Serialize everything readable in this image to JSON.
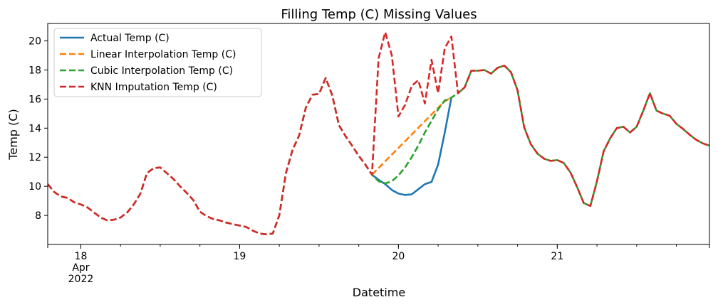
{
  "chart_data": {
    "type": "line",
    "title": "Filling Temp (C) Missing Values",
    "xlabel": "Datetime",
    "ylabel": "Temp (C)",
    "xlim": [
      "2022-04-17T19:00",
      "2022-04-21T23:00"
    ],
    "ylim": [
      6.0,
      21.2
    ],
    "yticks": [
      8,
      10,
      12,
      14,
      16,
      18,
      20
    ],
    "xticks": [
      {
        "x": "2022-04-18T00:00",
        "label": "18"
      },
      {
        "x": "2022-04-19T00:00",
        "label": "19"
      },
      {
        "x": "2022-04-20T00:00",
        "label": "20"
      },
      {
        "x": "2022-04-21T00:00",
        "label": "21"
      }
    ],
    "xtick_sublabels": [
      "Apr",
      "2022"
    ],
    "grid": false,
    "legend": "upper-left",
    "series": [
      {
        "name": "Actual Temp (C)",
        "color": "#1f77b4",
        "dash": "solid",
        "points": [
          [
            "2022-04-19T20:00",
            10.8
          ],
          [
            "2022-04-19T21:00",
            10.45
          ],
          [
            "2022-04-19T22:00",
            10.15
          ],
          [
            "2022-04-19T23:00",
            9.75
          ],
          [
            "2022-04-20T00:00",
            9.5
          ],
          [
            "2022-04-20T01:00",
            9.4
          ],
          [
            "2022-04-20T02:00",
            9.45
          ],
          [
            "2022-04-20T03:00",
            9.8
          ],
          [
            "2022-04-20T04:00",
            10.15
          ],
          [
            "2022-04-20T05:00",
            10.3
          ],
          [
            "2022-04-20T06:00",
            11.5
          ],
          [
            "2022-04-20T07:00",
            13.7
          ],
          [
            "2022-04-20T08:00",
            16.1
          ]
        ]
      },
      {
        "name": "Linear Interpolation Temp (C)",
        "color": "#ff7f0e",
        "dash": "dashed",
        "points": [
          [
            "2022-04-19T20:00",
            10.8
          ],
          [
            "2022-04-19T21:00",
            11.26
          ],
          [
            "2022-04-19T22:00",
            11.72
          ],
          [
            "2022-04-19T23:00",
            12.18
          ],
          [
            "2022-04-20T00:00",
            12.64
          ],
          [
            "2022-04-20T01:00",
            13.1
          ],
          [
            "2022-04-20T02:00",
            13.56
          ],
          [
            "2022-04-20T03:00",
            14.02
          ],
          [
            "2022-04-20T04:00",
            14.48
          ],
          [
            "2022-04-20T05:00",
            14.94
          ],
          [
            "2022-04-20T06:00",
            15.4
          ],
          [
            "2022-04-20T07:00",
            15.85
          ],
          [
            "2022-04-20T08:00",
            16.1
          ]
        ]
      },
      {
        "name": "Cubic Interpolation Temp (C)",
        "color": "#2ca02c",
        "dash": "dashed",
        "points": [
          [
            "2022-04-17T19:00",
            10.15
          ],
          [
            "2022-04-17T20:00",
            9.6
          ],
          [
            "2022-04-17T21:00",
            9.3
          ],
          [
            "2022-04-17T22:00",
            9.2
          ],
          [
            "2022-04-17T23:00",
            8.9
          ],
          [
            "2022-04-18T00:00",
            8.75
          ],
          [
            "2022-04-18T01:00",
            8.55
          ],
          [
            "2022-04-18T02:00",
            8.2
          ],
          [
            "2022-04-18T03:00",
            7.85
          ],
          [
            "2022-04-18T04:00",
            7.65
          ],
          [
            "2022-04-18T05:00",
            7.7
          ],
          [
            "2022-04-18T06:00",
            7.85
          ],
          [
            "2022-04-18T07:00",
            8.2
          ],
          [
            "2022-04-18T08:00",
            8.75
          ],
          [
            "2022-04-18T09:00",
            9.5
          ],
          [
            "2022-04-18T10:00",
            10.9
          ],
          [
            "2022-04-18T11:00",
            11.25
          ],
          [
            "2022-04-18T12:00",
            11.3
          ],
          [
            "2022-04-18T13:00",
            10.9
          ],
          [
            "2022-04-18T14:00",
            10.5
          ],
          [
            "2022-04-18T15:00",
            10.0
          ],
          [
            "2022-04-18T16:00",
            9.55
          ],
          [
            "2022-04-18T17:00",
            9.05
          ],
          [
            "2022-04-18T18:00",
            8.25
          ],
          [
            "2022-04-18T19:00",
            7.95
          ],
          [
            "2022-04-18T20:00",
            7.75
          ],
          [
            "2022-04-18T21:00",
            7.65
          ],
          [
            "2022-04-18T22:00",
            7.5
          ],
          [
            "2022-04-18T23:00",
            7.4
          ],
          [
            "2022-04-19T00:00",
            7.3
          ],
          [
            "2022-04-19T01:00",
            7.2
          ],
          [
            "2022-04-19T02:00",
            6.95
          ],
          [
            "2022-04-19T03:00",
            6.75
          ],
          [
            "2022-04-19T04:00",
            6.7
          ],
          [
            "2022-04-19T05:00",
            6.75
          ],
          [
            "2022-04-19T06:00",
            8.0
          ],
          [
            "2022-04-19T07:00",
            10.9
          ],
          [
            "2022-04-19T08:00",
            12.5
          ],
          [
            "2022-04-19T09:00",
            13.5
          ],
          [
            "2022-04-19T10:00",
            15.4
          ],
          [
            "2022-04-19T11:00",
            16.3
          ],
          [
            "2022-04-19T12:00",
            16.35
          ],
          [
            "2022-04-19T13:00",
            17.45
          ],
          [
            "2022-04-19T14:00",
            16.25
          ],
          [
            "2022-04-19T15:00",
            14.2
          ],
          [
            "2022-04-19T16:00",
            13.45
          ],
          [
            "2022-04-19T17:00",
            12.8
          ],
          [
            "2022-04-19T18:00",
            12.1
          ],
          [
            "2022-04-19T19:00",
            11.5
          ],
          [
            "2022-04-19T20:00",
            10.8
          ],
          [
            "2022-04-19T21:00",
            10.35
          ],
          [
            "2022-04-19T22:00",
            10.2
          ],
          [
            "2022-04-19T23:00",
            10.35
          ],
          [
            "2022-04-20T00:00",
            10.75
          ],
          [
            "2022-04-20T01:00",
            11.3
          ],
          [
            "2022-04-20T02:00",
            12.0
          ],
          [
            "2022-04-20T03:00",
            12.8
          ],
          [
            "2022-04-20T04:00",
            13.7
          ],
          [
            "2022-04-20T05:00",
            14.5
          ],
          [
            "2022-04-20T06:00",
            15.3
          ],
          [
            "2022-04-20T07:00",
            15.9
          ],
          [
            "2022-04-20T08:00",
            16.1
          ],
          [
            "2022-04-20T09:00",
            16.4
          ],
          [
            "2022-04-20T10:00",
            16.8
          ],
          [
            "2022-04-20T11:00",
            17.95
          ],
          [
            "2022-04-20T12:00",
            17.95
          ],
          [
            "2022-04-20T13:00",
            18.0
          ],
          [
            "2022-04-20T14:00",
            17.75
          ],
          [
            "2022-04-20T15:00",
            18.15
          ],
          [
            "2022-04-20T16:00",
            18.3
          ],
          [
            "2022-04-20T17:00",
            17.85
          ],
          [
            "2022-04-20T18:00",
            16.6
          ],
          [
            "2022-04-20T19:00",
            14.05
          ],
          [
            "2022-04-20T20:00",
            12.9
          ],
          [
            "2022-04-20T21:00",
            12.25
          ],
          [
            "2022-04-20T22:00",
            11.9
          ],
          [
            "2022-04-20T23:00",
            11.75
          ],
          [
            "2022-04-21T00:00",
            11.8
          ],
          [
            "2022-04-21T01:00",
            11.6
          ],
          [
            "2022-04-21T02:00",
            10.95
          ],
          [
            "2022-04-21T03:00",
            9.95
          ],
          [
            "2022-04-21T04:00",
            8.85
          ],
          [
            "2022-04-21T05:00",
            8.65
          ],
          [
            "2022-04-21T06:00",
            10.35
          ],
          [
            "2022-04-21T07:00",
            12.4
          ],
          [
            "2022-04-21T08:00",
            13.3
          ],
          [
            "2022-04-21T09:00",
            14.0
          ],
          [
            "2022-04-21T10:00",
            14.1
          ],
          [
            "2022-04-21T11:00",
            13.7
          ],
          [
            "2022-04-21T12:00",
            14.1
          ],
          [
            "2022-04-21T13:00",
            15.2
          ],
          [
            "2022-04-21T14:00",
            16.4
          ],
          [
            "2022-04-21T15:00",
            15.2
          ],
          [
            "2022-04-21T16:00",
            15.0
          ],
          [
            "2022-04-21T17:00",
            14.85
          ],
          [
            "2022-04-21T18:00",
            14.3
          ],
          [
            "2022-04-21T19:00",
            13.95
          ],
          [
            "2022-04-21T20:00",
            13.55
          ],
          [
            "2022-04-21T21:00",
            13.2
          ],
          [
            "2022-04-21T22:00",
            12.95
          ],
          [
            "2022-04-21T23:00",
            12.8
          ]
        ]
      },
      {
        "name": "KNN Imputation Temp (C)",
        "color": "#d62728",
        "dash": "dashed",
        "points": [
          [
            "2022-04-17T19:00",
            10.15
          ],
          [
            "2022-04-17T20:00",
            9.6
          ],
          [
            "2022-04-17T21:00",
            9.3
          ],
          [
            "2022-04-17T22:00",
            9.2
          ],
          [
            "2022-04-17T23:00",
            8.9
          ],
          [
            "2022-04-18T00:00",
            8.75
          ],
          [
            "2022-04-18T01:00",
            8.55
          ],
          [
            "2022-04-18T02:00",
            8.2
          ],
          [
            "2022-04-18T03:00",
            7.85
          ],
          [
            "2022-04-18T04:00",
            7.65
          ],
          [
            "2022-04-18T05:00",
            7.7
          ],
          [
            "2022-04-18T06:00",
            7.85
          ],
          [
            "2022-04-18T07:00",
            8.2
          ],
          [
            "2022-04-18T08:00",
            8.75
          ],
          [
            "2022-04-18T09:00",
            9.5
          ],
          [
            "2022-04-18T10:00",
            10.9
          ],
          [
            "2022-04-18T11:00",
            11.25
          ],
          [
            "2022-04-18T12:00",
            11.3
          ],
          [
            "2022-04-18T13:00",
            10.9
          ],
          [
            "2022-04-18T14:00",
            10.5
          ],
          [
            "2022-04-18T15:00",
            10.0
          ],
          [
            "2022-04-18T16:00",
            9.55
          ],
          [
            "2022-04-18T17:00",
            9.05
          ],
          [
            "2022-04-18T18:00",
            8.25
          ],
          [
            "2022-04-18T19:00",
            7.95
          ],
          [
            "2022-04-18T20:00",
            7.75
          ],
          [
            "2022-04-18T21:00",
            7.65
          ],
          [
            "2022-04-18T22:00",
            7.5
          ],
          [
            "2022-04-18T23:00",
            7.4
          ],
          [
            "2022-04-19T00:00",
            7.3
          ],
          [
            "2022-04-19T01:00",
            7.2
          ],
          [
            "2022-04-19T02:00",
            6.95
          ],
          [
            "2022-04-19T03:00",
            6.75
          ],
          [
            "2022-04-19T04:00",
            6.7
          ],
          [
            "2022-04-19T05:00",
            6.75
          ],
          [
            "2022-04-19T06:00",
            8.0
          ],
          [
            "2022-04-19T07:00",
            10.9
          ],
          [
            "2022-04-19T08:00",
            12.5
          ],
          [
            "2022-04-19T09:00",
            13.5
          ],
          [
            "2022-04-19T10:00",
            15.4
          ],
          [
            "2022-04-19T11:00",
            16.3
          ],
          [
            "2022-04-19T12:00",
            16.35
          ],
          [
            "2022-04-19T13:00",
            17.45
          ],
          [
            "2022-04-19T14:00",
            16.25
          ],
          [
            "2022-04-19T15:00",
            14.2
          ],
          [
            "2022-04-19T16:00",
            13.45
          ],
          [
            "2022-04-19T17:00",
            12.8
          ],
          [
            "2022-04-19T18:00",
            12.1
          ],
          [
            "2022-04-19T19:00",
            11.5
          ],
          [
            "2022-04-19T20:00",
            10.8
          ],
          [
            "2022-04-19T21:00",
            18.8
          ],
          [
            "2022-04-19T22:00",
            20.6
          ],
          [
            "2022-04-19T23:00",
            19.0
          ],
          [
            "2022-04-20T00:00",
            14.8
          ],
          [
            "2022-04-20T01:00",
            15.6
          ],
          [
            "2022-04-20T02:00",
            16.9
          ],
          [
            "2022-04-20T03:00",
            17.3
          ],
          [
            "2022-04-20T04:00",
            15.7
          ],
          [
            "2022-04-20T05:00",
            18.7
          ],
          [
            "2022-04-20T06:00",
            16.4
          ],
          [
            "2022-04-20T07:00",
            19.5
          ],
          [
            "2022-04-20T08:00",
            20.3
          ],
          [
            "2022-04-20T09:00",
            16.4
          ],
          [
            "2022-04-20T10:00",
            16.8
          ],
          [
            "2022-04-20T11:00",
            17.95
          ],
          [
            "2022-04-20T12:00",
            17.95
          ],
          [
            "2022-04-20T13:00",
            18.0
          ],
          [
            "2022-04-20T14:00",
            17.75
          ],
          [
            "2022-04-20T15:00",
            18.15
          ],
          [
            "2022-04-20T16:00",
            18.3
          ],
          [
            "2022-04-20T17:00",
            17.85
          ],
          [
            "2022-04-20T18:00",
            16.6
          ],
          [
            "2022-04-20T19:00",
            14.05
          ],
          [
            "2022-04-20T20:00",
            12.9
          ],
          [
            "2022-04-20T21:00",
            12.25
          ],
          [
            "2022-04-20T22:00",
            11.9
          ],
          [
            "2022-04-20T23:00",
            11.75
          ],
          [
            "2022-04-21T00:00",
            11.8
          ],
          [
            "2022-04-21T01:00",
            11.6
          ],
          [
            "2022-04-21T02:00",
            10.95
          ],
          [
            "2022-04-21T03:00",
            9.95
          ],
          [
            "2022-04-21T04:00",
            8.85
          ],
          [
            "2022-04-21T05:00",
            8.65
          ],
          [
            "2022-04-21T06:00",
            10.35
          ],
          [
            "2022-04-21T07:00",
            12.4
          ],
          [
            "2022-04-21T08:00",
            13.3
          ],
          [
            "2022-04-21T09:00",
            14.0
          ],
          [
            "2022-04-21T10:00",
            14.1
          ],
          [
            "2022-04-21T11:00",
            13.7
          ],
          [
            "2022-04-21T12:00",
            14.1
          ],
          [
            "2022-04-21T13:00",
            15.2
          ],
          [
            "2022-04-21T14:00",
            16.4
          ],
          [
            "2022-04-21T15:00",
            15.2
          ],
          [
            "2022-04-21T16:00",
            15.0
          ],
          [
            "2022-04-21T17:00",
            14.85
          ],
          [
            "2022-04-21T18:00",
            14.3
          ],
          [
            "2022-04-21T19:00",
            13.95
          ],
          [
            "2022-04-21T20:00",
            13.55
          ],
          [
            "2022-04-21T21:00",
            13.2
          ],
          [
            "2022-04-21T22:00",
            12.95
          ],
          [
            "2022-04-21T23:00",
            12.8
          ]
        ]
      }
    ]
  }
}
